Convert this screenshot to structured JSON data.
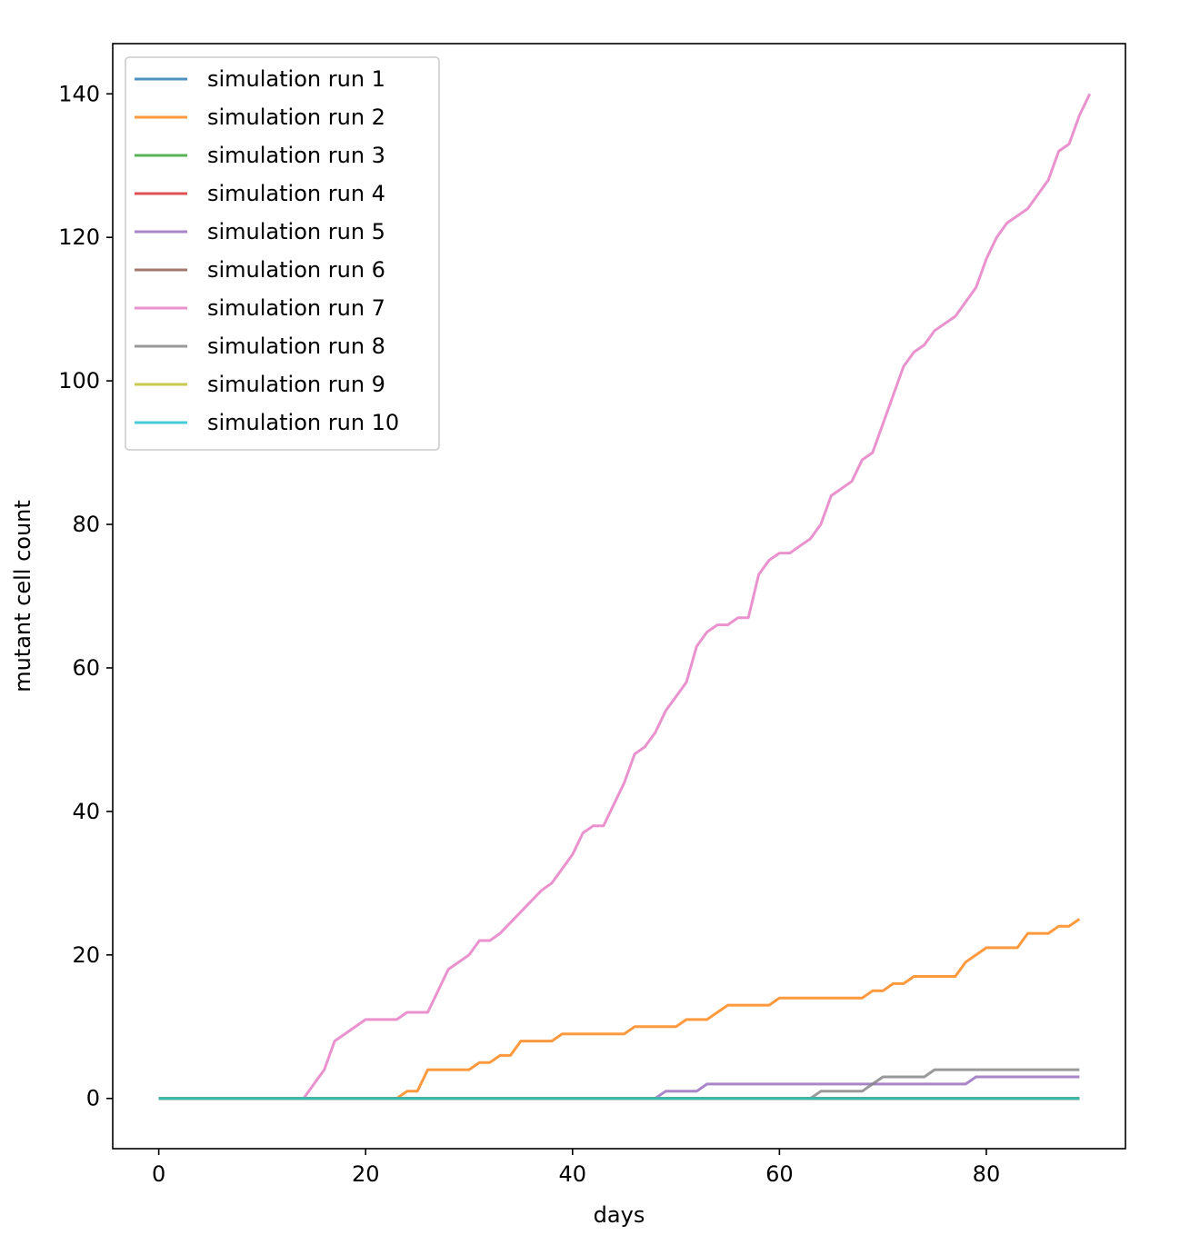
{
  "chart_data": {
    "type": "line",
    "title": "",
    "xlabel": "days",
    "ylabel": "mutant cell count",
    "xlim": [
      -4.45,
      93.45
    ],
    "ylim": [
      -7,
      147
    ],
    "xticks": [
      0,
      20,
      40,
      60,
      80
    ],
    "yticks": [
      0,
      20,
      40,
      60,
      80,
      100,
      120,
      140
    ],
    "grid": false,
    "legend_position": "top-left",
    "series": [
      {
        "name": "simulation run 1",
        "color": "#1f77b4",
        "points": [
          [
            0,
            0
          ],
          [
            89,
            0
          ]
        ]
      },
      {
        "name": "simulation run 2",
        "color": "#ff7f0e",
        "points": [
          [
            0,
            0
          ],
          [
            23,
            0
          ],
          [
            24,
            1
          ],
          [
            25,
            1
          ],
          [
            26,
            4
          ],
          [
            30,
            4
          ],
          [
            31,
            5
          ],
          [
            32,
            5
          ],
          [
            33,
            6
          ],
          [
            34,
            6
          ],
          [
            35,
            8
          ],
          [
            38,
            8
          ],
          [
            39,
            9
          ],
          [
            45,
            9
          ],
          [
            46,
            10
          ],
          [
            50,
            10
          ],
          [
            51,
            11
          ],
          [
            53,
            11
          ],
          [
            55,
            13
          ],
          [
            59,
            13
          ],
          [
            60,
            14
          ],
          [
            68,
            14
          ],
          [
            69,
            15
          ],
          [
            70,
            15
          ],
          [
            71,
            16
          ],
          [
            72,
            16
          ],
          [
            73,
            17
          ],
          [
            77,
            17
          ],
          [
            78,
            19
          ],
          [
            80,
            21
          ],
          [
            83,
            21
          ],
          [
            84,
            23
          ],
          [
            86,
            23
          ],
          [
            87,
            24
          ],
          [
            88,
            24
          ],
          [
            89,
            25
          ]
        ]
      },
      {
        "name": "simulation run 3",
        "color": "#2ca02c",
        "points": [
          [
            0,
            0
          ],
          [
            89,
            0
          ]
        ]
      },
      {
        "name": "simulation run 4",
        "color": "#d62728",
        "points": [
          [
            0,
            0
          ],
          [
            89,
            0
          ]
        ]
      },
      {
        "name": "simulation run 5",
        "color": "#9467bd",
        "points": [
          [
            0,
            0
          ],
          [
            48,
            0
          ],
          [
            49,
            1
          ],
          [
            52,
            1
          ],
          [
            53,
            2
          ],
          [
            78,
            2
          ],
          [
            79,
            3
          ],
          [
            89,
            3
          ]
        ]
      },
      {
        "name": "simulation run 6",
        "color": "#8c564b",
        "points": [
          [
            0,
            0
          ],
          [
            89,
            0
          ]
        ]
      },
      {
        "name": "simulation run 7",
        "color": "#e377c2",
        "points": [
          [
            0,
            0
          ],
          [
            14,
            0
          ],
          [
            15,
            2
          ],
          [
            16,
            4
          ],
          [
            17,
            8
          ],
          [
            20,
            11
          ],
          [
            23,
            11
          ],
          [
            24,
            12
          ],
          [
            26,
            12
          ],
          [
            28,
            18
          ],
          [
            30,
            20
          ],
          [
            31,
            22
          ],
          [
            32,
            22
          ],
          [
            33,
            23
          ],
          [
            35,
            26
          ],
          [
            37,
            29
          ],
          [
            38,
            30
          ],
          [
            40,
            34
          ],
          [
            41,
            37
          ],
          [
            42,
            38
          ],
          [
            43,
            38
          ],
          [
            45,
            44
          ],
          [
            46,
            48
          ],
          [
            47,
            49
          ],
          [
            48,
            51
          ],
          [
            49,
            54
          ],
          [
            51,
            58
          ],
          [
            52,
            63
          ],
          [
            53,
            65
          ],
          [
            54,
            66
          ],
          [
            55,
            66
          ],
          [
            56,
            67
          ],
          [
            57,
            67
          ],
          [
            58,
            73
          ],
          [
            59,
            75
          ],
          [
            60,
            76
          ],
          [
            61,
            76
          ],
          [
            62,
            77
          ],
          [
            63,
            78
          ],
          [
            64,
            80
          ],
          [
            65,
            84
          ],
          [
            66,
            85
          ],
          [
            67,
            86
          ],
          [
            68,
            89
          ],
          [
            69,
            90
          ],
          [
            70,
            94
          ],
          [
            72,
            102
          ],
          [
            73,
            104
          ],
          [
            74,
            105
          ],
          [
            75,
            107
          ],
          [
            77,
            109
          ],
          [
            79,
            113
          ],
          [
            80,
            117
          ],
          [
            81,
            120
          ],
          [
            82,
            122
          ],
          [
            84,
            124
          ],
          [
            86,
            128
          ],
          [
            87,
            132
          ],
          [
            88,
            133
          ],
          [
            89,
            137
          ],
          [
            90,
            140
          ]
        ]
      },
      {
        "name": "simulation run 8",
        "color": "#7f7f7f",
        "points": [
          [
            0,
            0
          ],
          [
            63,
            0
          ],
          [
            64,
            1
          ],
          [
            68,
            1
          ],
          [
            69,
            2
          ],
          [
            70,
            3
          ],
          [
            74,
            3
          ],
          [
            75,
            4
          ],
          [
            89,
            4
          ]
        ]
      },
      {
        "name": "simulation run 9",
        "color": "#bcbd22",
        "points": [
          [
            0,
            0
          ],
          [
            89,
            0
          ]
        ]
      },
      {
        "name": "simulation run 10",
        "color": "#17becf",
        "points": [
          [
            0,
            0
          ],
          [
            89,
            0
          ]
        ]
      }
    ]
  }
}
